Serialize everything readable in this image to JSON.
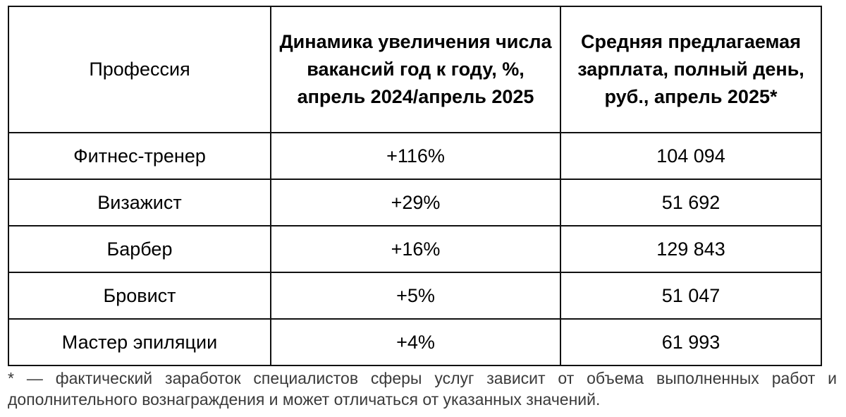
{
  "table": {
    "headers": [
      "Профессия",
      "Динамика увеличения числа вакансий год к году, %, апрель 2024/апрель 2025",
      "Средняя предлагаемая зарплата, полный день, руб., апрель 2025*"
    ],
    "rows": [
      [
        "Фитнес-тренер",
        "+116%",
        "104 094"
      ],
      [
        "Визажист",
        "+29%",
        "51 692"
      ],
      [
        "Барбер",
        "+16%",
        "129 843"
      ],
      [
        "Бровист",
        "+5%",
        "51 047"
      ],
      [
        "Мастер эпиляции",
        "+4%",
        "61 993"
      ]
    ]
  },
  "footnote": "* — фактический заработок специалистов сферы услуг зависит от объема выполненных работ и дополнительного вознаграждения и может отличаться от указанных значений."
}
